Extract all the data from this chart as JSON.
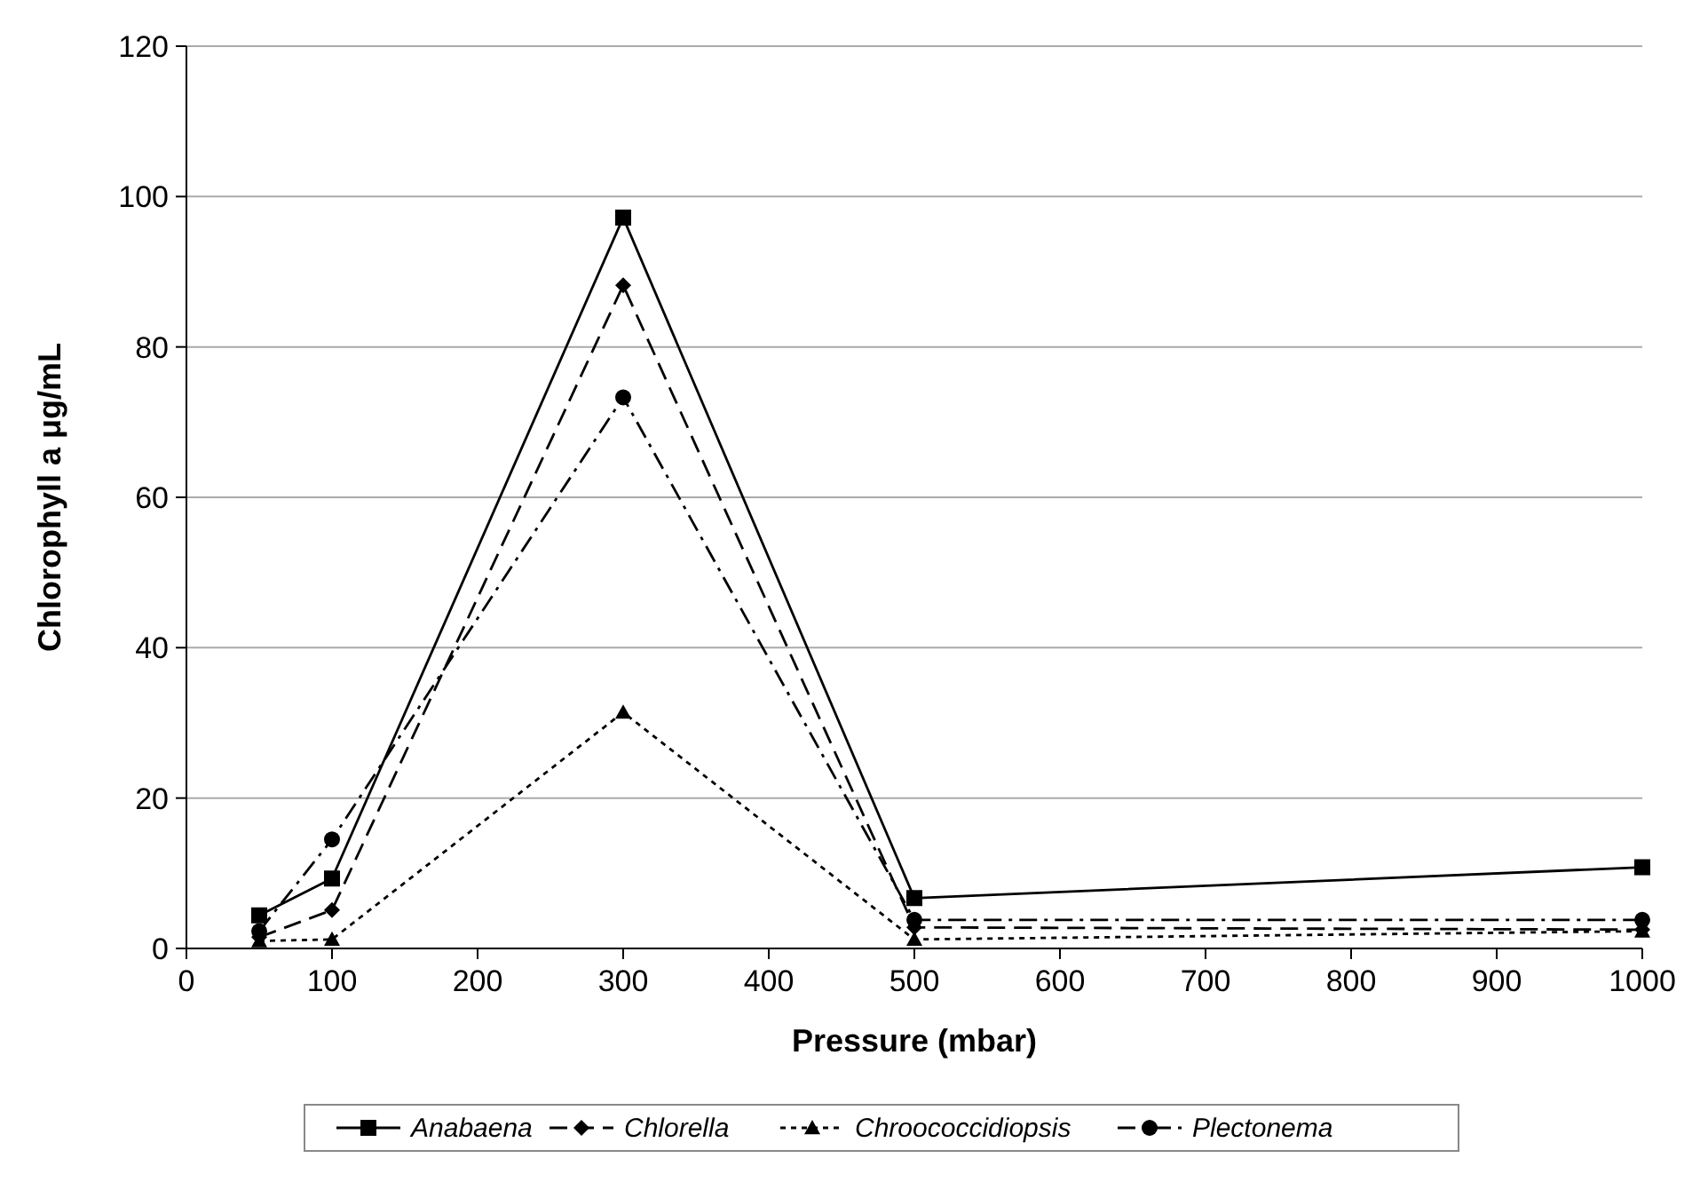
{
  "chart_data": {
    "type": "line",
    "xlabel": "Pressure (mbar)",
    "ylabel": "Chlorophyll a μg/mL",
    "x": [
      50,
      100,
      300,
      500,
      1000
    ],
    "xlim": [
      0,
      1000
    ],
    "xticks": [
      0,
      100,
      200,
      300,
      400,
      500,
      600,
      700,
      800,
      900,
      1000
    ],
    "ylim": [
      0,
      120
    ],
    "yticks": [
      0,
      20,
      40,
      60,
      80,
      100,
      120
    ],
    "grid": "y",
    "legend": "bottom",
    "series": [
      {
        "name": "Anabaena",
        "color": "#000000",
        "marker": "square",
        "line_style": "solid",
        "values": [
          4.4,
          9.3,
          97.2,
          6.7,
          10.8
        ]
      },
      {
        "name": "Chlorella",
        "color": "#000000",
        "marker": "diamond",
        "line_style": "dashed",
        "values": [
          1.5,
          5.1,
          88.2,
          2.8,
          2.5
        ]
      },
      {
        "name": "Chroococcidiopsis",
        "color": "#000000",
        "marker": "triangle",
        "line_style": "dotted",
        "values": [
          1.0,
          1.2,
          31.4,
          1.2,
          2.3
        ]
      },
      {
        "name": "Plectonema",
        "color": "#000000",
        "marker": "circle",
        "line_style": "dashdot",
        "values": [
          2.3,
          14.5,
          73.3,
          3.8,
          3.8
        ]
      }
    ]
  }
}
